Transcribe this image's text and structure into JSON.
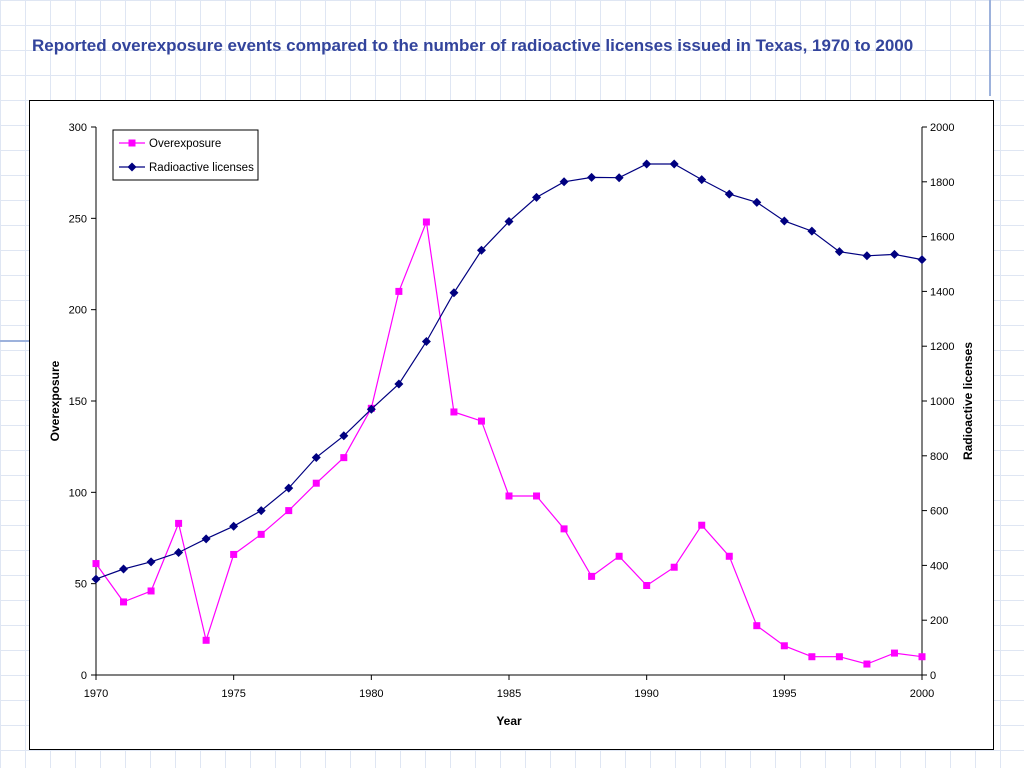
{
  "slide": {
    "title": "Reported overexposure events compared to the number of radioactive licenses issued in Texas, 1970 to 2000"
  },
  "colors": {
    "title": "#33449c",
    "overexposure": "#ff00ff",
    "licenses": "#000080",
    "background_grid": "#dfe6f3"
  },
  "chart_data": {
    "type": "line",
    "title": "",
    "xlabel": "Year",
    "ylabel": "Overexposure",
    "y2label": "Radioactive licenses",
    "xlim": [
      1970,
      2000
    ],
    "ylim": [
      0,
      300
    ],
    "y2lim": [
      0,
      2000
    ],
    "x_ticks": [
      1970,
      1975,
      1980,
      1985,
      1990,
      1995,
      2000
    ],
    "y_ticks": [
      0,
      50,
      100,
      150,
      200,
      250,
      300
    ],
    "y2_ticks": [
      0,
      200,
      400,
      600,
      800,
      1000,
      1200,
      1400,
      1600,
      1800,
      2000
    ],
    "grid": false,
    "legend_position": "top-left",
    "x": [
      1970,
      1971,
      1972,
      1973,
      1974,
      1975,
      1976,
      1977,
      1978,
      1979,
      1980,
      1981,
      1982,
      1983,
      1984,
      1985,
      1986,
      1987,
      1988,
      1989,
      1990,
      1991,
      1992,
      1993,
      1994,
      1995,
      1996,
      1997,
      1998,
      1999,
      2000
    ],
    "series": [
      {
        "name": "Overexposure",
        "axis": "left",
        "marker": "square",
        "color": "#ff00ff",
        "values": [
          61,
          40,
          46,
          83,
          19,
          66,
          77,
          90,
          105,
          119,
          146,
          210,
          248,
          144,
          139,
          98,
          98,
          80,
          54,
          65,
          49,
          59,
          82,
          65,
          27,
          16,
          10,
          10,
          6,
          12,
          10
        ]
      },
      {
        "name": "Radioactive licenses",
        "axis": "right",
        "marker": "diamond",
        "color": "#000080",
        "values": [
          350,
          387,
          413,
          447,
          497,
          543,
          600,
          682,
          794,
          873,
          970,
          1062,
          1217,
          1395,
          1550,
          1655,
          1743,
          1800,
          1816,
          1815,
          1865,
          1865,
          1808,
          1755,
          1725,
          1657,
          1620,
          1545,
          1530,
          1535,
          1516
        ]
      }
    ]
  }
}
